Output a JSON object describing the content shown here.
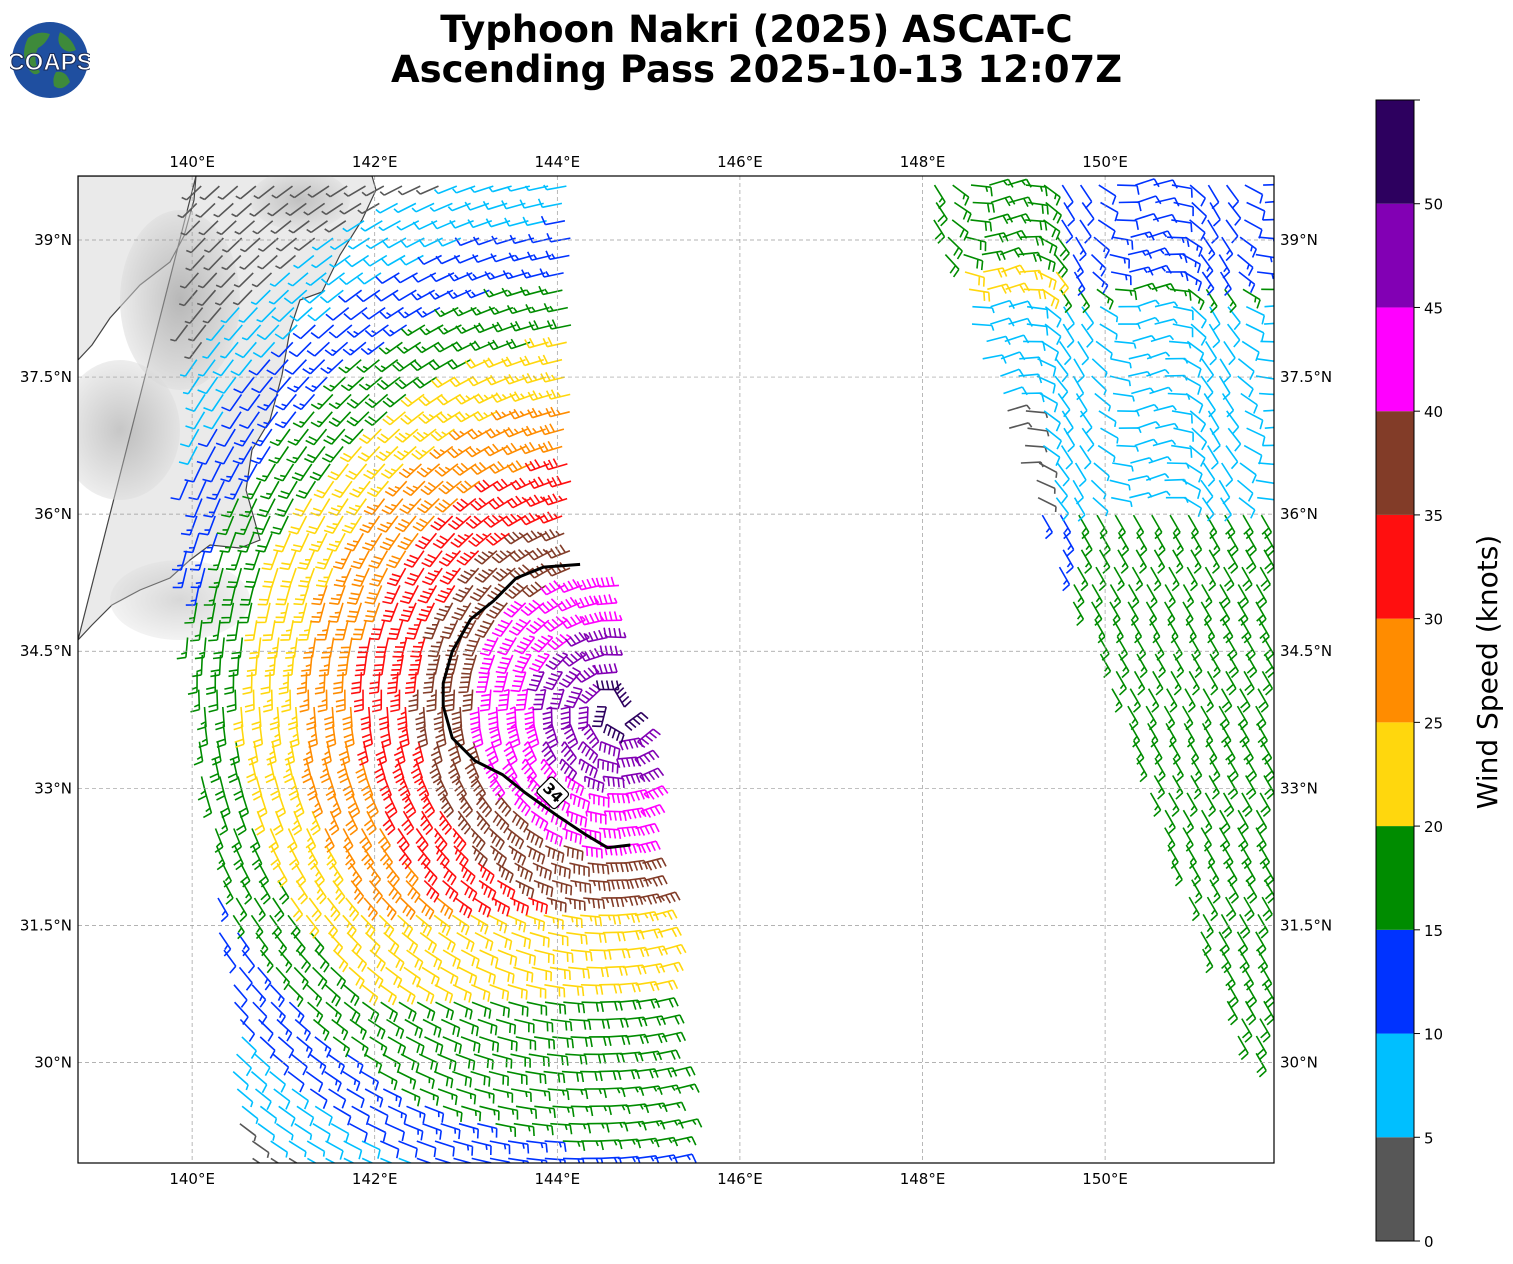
{
  "title": {
    "line1": "Typhoon Nakri (2025) ASCAT-C",
    "line2": "Ascending Pass 2025-10-13 12:07Z"
  },
  "logo": {
    "text": "COAPS",
    "icon": "globe-logo-icon"
  },
  "map": {
    "lon_range": [
      138.75,
      151.85
    ],
    "lat_range": [
      28.9,
      39.7
    ],
    "lon_ticks": [
      "140°E",
      "142°E",
      "144°E",
      "146°E",
      "148°E",
      "150°E"
    ],
    "lon_tick_values": [
      140,
      142,
      144,
      146,
      148,
      150
    ],
    "lat_ticks": [
      "39°N",
      "37.5°N",
      "36°N",
      "34.5°N",
      "33°N",
      "31.5°N",
      "30°N"
    ],
    "lat_tick_values": [
      39,
      37.5,
      36,
      34.5,
      33,
      31.5,
      30
    ],
    "grid": "dashed",
    "land": "Japan (Honshu) coastline with shaded terrain",
    "contour": {
      "label": "34",
      "units": "knots",
      "points": [
        [
          144.25,
          35.45
        ],
        [
          143.85,
          35.42
        ],
        [
          143.55,
          35.3
        ],
        [
          143.3,
          35.05
        ],
        [
          143.05,
          34.85
        ],
        [
          142.85,
          34.5
        ],
        [
          142.75,
          34.15
        ],
        [
          142.75,
          33.9
        ],
        [
          142.85,
          33.55
        ],
        [
          143.1,
          33.3
        ],
        [
          143.4,
          33.15
        ],
        [
          143.65,
          32.95
        ],
        [
          144.0,
          32.7
        ],
        [
          144.3,
          32.5
        ],
        [
          144.55,
          32.35
        ],
        [
          144.8,
          32.38
        ]
      ]
    }
  },
  "colorbar": {
    "label": "Wind Speed (knots)",
    "ticks": [
      "0",
      "5",
      "10",
      "15",
      "20",
      "25",
      "30",
      "35",
      "40",
      "45",
      "50"
    ],
    "bins": [
      {
        "from": 0,
        "to": 5,
        "color": "#575757"
      },
      {
        "from": 5,
        "to": 10,
        "color": "#00bfff"
      },
      {
        "from": 10,
        "to": 15,
        "color": "#0033ff"
      },
      {
        "from": 15,
        "to": 20,
        "color": "#008c00"
      },
      {
        "from": 20,
        "to": 25,
        "color": "#ffd70d"
      },
      {
        "from": 25,
        "to": 30,
        "color": "#ff8c00"
      },
      {
        "from": 30,
        "to": 35,
        "color": "#ff0f0f"
      },
      {
        "from": 35,
        "to": 40,
        "color": "#823c28"
      },
      {
        "from": 40,
        "to": 45,
        "color": "#ff00ff"
      },
      {
        "from": 45,
        "to": 50,
        "color": "#8200b4"
      },
      {
        "from": 50,
        "to": 55,
        "color": "#2d005f"
      }
    ]
  }
}
